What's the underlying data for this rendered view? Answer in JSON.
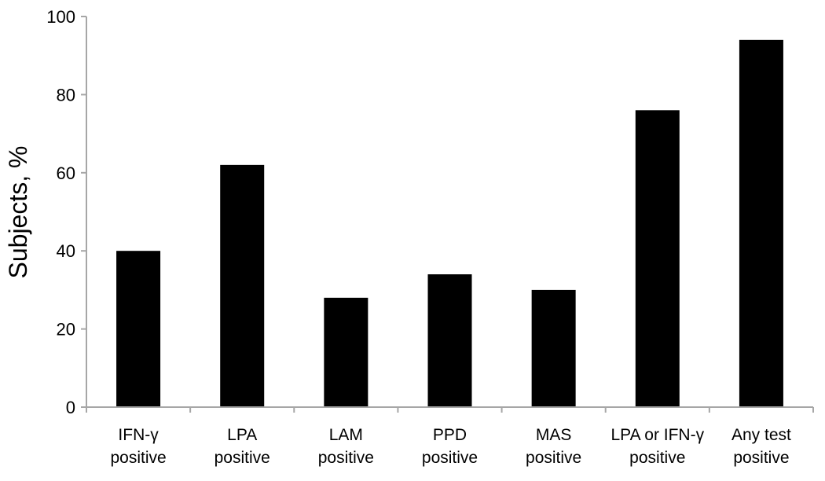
{
  "chart_data": {
    "type": "bar",
    "title": "",
    "xlabel": "",
    "ylabel": "Subjects, %",
    "ylim": [
      0,
      100
    ],
    "yticks": [
      0,
      20,
      40,
      60,
      80,
      100
    ],
    "grid": false,
    "bar_color": "#000000",
    "categories": [
      [
        "IFN-γ",
        "positive"
      ],
      [
        "LPA",
        "positive"
      ],
      [
        "LAM",
        "positive"
      ],
      [
        "PPD",
        "positive"
      ],
      [
        "MAS",
        "positive"
      ],
      [
        "LPA or IFN-γ",
        "positive"
      ],
      [
        "Any test",
        "positive"
      ]
    ],
    "values": [
      40,
      62,
      28,
      34,
      30,
      76,
      94
    ]
  }
}
